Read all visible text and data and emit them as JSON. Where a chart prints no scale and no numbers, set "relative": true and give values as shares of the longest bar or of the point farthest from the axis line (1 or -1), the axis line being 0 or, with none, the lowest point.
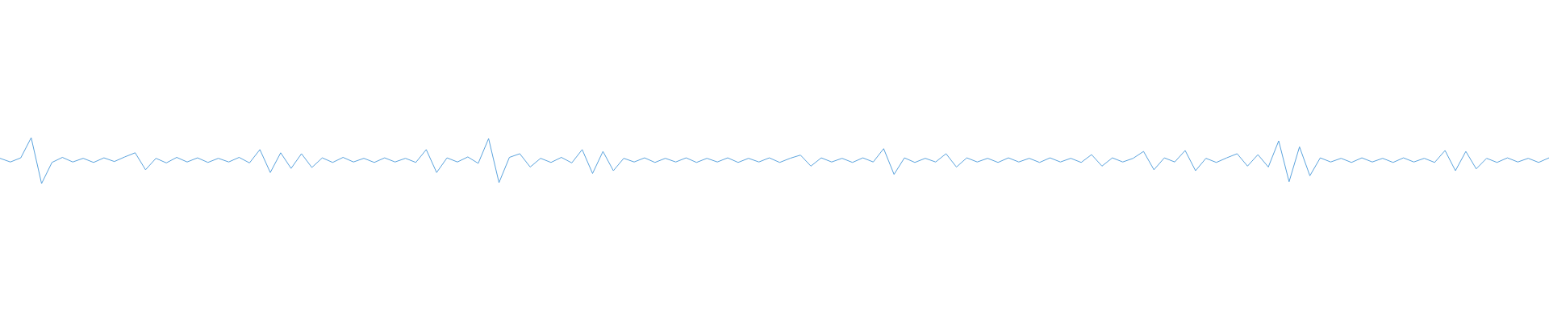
{
  "chart_data": {
    "type": "line",
    "relative": true,
    "color": "#5ba3dd",
    "marker": "none",
    "categories": [
      null,
      null,
      null,
      null,
      null,
      null,
      null,
      null,
      null,
      null,
      null,
      null,
      null,
      null,
      null,
      null,
      null,
      null,
      null,
      null,
      null,
      null,
      null,
      null,
      null,
      null,
      null,
      null,
      null,
      null,
      null,
      null,
      null,
      null,
      null,
      null,
      null,
      null,
      null,
      null,
      null,
      null,
      null,
      null,
      null,
      null,
      null,
      null,
      null,
      null,
      null,
      null,
      null,
      null,
      null,
      null,
      null,
      null,
      null,
      null,
      null,
      null,
      null,
      null,
      null,
      null,
      null,
      null,
      null,
      null,
      null,
      null,
      null,
      null,
      null,
      null,
      null,
      null,
      null,
      null,
      null,
      null,
      null,
      null,
      null,
      null,
      null,
      null,
      null,
      null,
      null,
      null,
      null,
      null,
      null,
      null,
      null,
      null,
      null,
      null,
      null,
      null,
      null,
      null,
      null,
      null,
      null,
      null,
      null,
      null,
      null,
      null,
      null,
      null,
      null,
      null,
      null,
      null,
      null,
      null,
      null,
      null,
      null,
      null,
      null,
      null,
      null,
      null,
      null,
      null,
      null,
      null,
      null,
      null,
      null,
      null,
      null,
      null,
      null,
      null,
      null,
      null,
      null,
      null,
      null,
      null,
      null,
      null,
      null,
      null
    ],
    "values": [
      0.55,
      0.47,
      0.56,
      1.0,
      0.0,
      0.46,
      0.57,
      0.47,
      0.55,
      0.46,
      0.56,
      0.48,
      0.58,
      0.67,
      0.3,
      0.55,
      0.45,
      0.57,
      0.47,
      0.56,
      0.46,
      0.55,
      0.47,
      0.57,
      0.45,
      0.74,
      0.24,
      0.67,
      0.33,
      0.65,
      0.35,
      0.56,
      0.46,
      0.57,
      0.47,
      0.55,
      0.46,
      0.56,
      0.47,
      0.55,
      0.46,
      0.74,
      0.24,
      0.56,
      0.47,
      0.58,
      0.44,
      0.98,
      0.02,
      0.57,
      0.65,
      0.36,
      0.55,
      0.46,
      0.57,
      0.45,
      0.74,
      0.22,
      0.7,
      0.28,
      0.55,
      0.47,
      0.56,
      0.46,
      0.55,
      0.47,
      0.56,
      0.46,
      0.55,
      0.47,
      0.56,
      0.46,
      0.55,
      0.47,
      0.56,
      0.46,
      0.55,
      0.62,
      0.38,
      0.56,
      0.47,
      0.55,
      0.46,
      0.56,
      0.47,
      0.76,
      0.2,
      0.56,
      0.46,
      0.55,
      0.47,
      0.65,
      0.36,
      0.56,
      0.47,
      0.55,
      0.46,
      0.56,
      0.47,
      0.55,
      0.46,
      0.56,
      0.47,
      0.55,
      0.46,
      0.63,
      0.38,
      0.56,
      0.47,
      0.55,
      0.7,
      0.3,
      0.56,
      0.47,
      0.72,
      0.28,
      0.55,
      0.46,
      0.56,
      0.65,
      0.38,
      0.63,
      0.36,
      0.93,
      0.04,
      0.8,
      0.17,
      0.56,
      0.47,
      0.55,
      0.46,
      0.56,
      0.47,
      0.55,
      0.46,
      0.56,
      0.47,
      0.55,
      0.46,
      0.72,
      0.28,
      0.7,
      0.32,
      0.55,
      0.46,
      0.56,
      0.47,
      0.55,
      0.46,
      0.56
    ]
  }
}
